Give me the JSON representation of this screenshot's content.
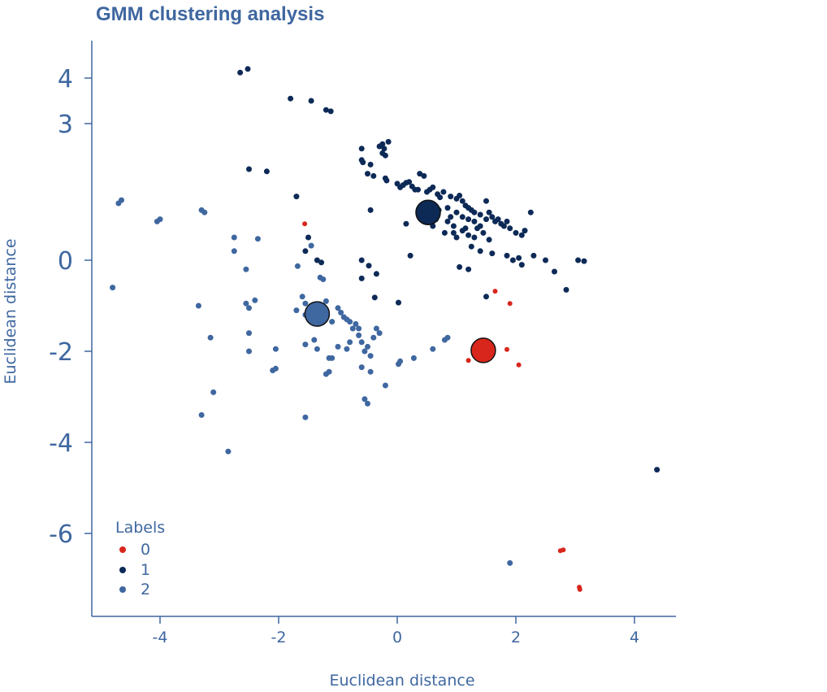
{
  "chart_data": {
    "type": "scatter",
    "title": "GMM clustering analysis",
    "xlabel": "Euclidean distance",
    "ylabel": "Euclidean distance",
    "xlim": [
      -5.2,
      4.8
    ],
    "ylim": [
      -7.7,
      4.5
    ],
    "xticks": [
      -4,
      -2,
      0,
      2,
      4
    ],
    "yticks": [
      4,
      3,
      0,
      -2,
      -4,
      -6
    ],
    "xtick_labels": [
      "-4",
      "-2",
      "0",
      "2",
      "4"
    ],
    "ytick_labels": [
      "4",
      "3",
      "0",
      "-2",
      "-4",
      "-6"
    ],
    "legend": {
      "title": "Labels",
      "position": "bottom-left",
      "entries": [
        "0",
        "1",
        "2"
      ]
    },
    "grid": false,
    "colors": {
      "0": "#d9261c",
      "1": "#0d2a57",
      "2": "#3f67a0",
      "text": "#3f67a0"
    },
    "series": [
      {
        "name": "0",
        "points": [
          [
            -1.56,
            0.8
          ],
          [
            1.65,
            -0.68
          ],
          [
            1.9,
            -0.95
          ],
          [
            1.85,
            -1.96
          ],
          [
            1.2,
            -2.2
          ],
          [
            2.05,
            -2.3
          ],
          [
            2.75,
            -6.38
          ],
          [
            2.8,
            -6.36
          ],
          [
            3.07,
            -7.18
          ],
          [
            3.08,
            -7.23
          ]
        ]
      },
      {
        "name": "1",
        "points": [
          [
            -2.65,
            4.12
          ],
          [
            -2.52,
            4.2
          ],
          [
            -1.8,
            3.55
          ],
          [
            -1.45,
            3.5
          ],
          [
            -1.2,
            3.3
          ],
          [
            -1.12,
            3.27
          ],
          [
            -2.5,
            2.0
          ],
          [
            -2.2,
            1.95
          ],
          [
            -1.7,
            1.4
          ],
          [
            -1.5,
            0.5
          ],
          [
            -1.55,
            0.2
          ],
          [
            -1.35,
            0.0
          ],
          [
            -1.28,
            -0.05
          ],
          [
            -0.6,
            0.0
          ],
          [
            -0.48,
            -0.12
          ],
          [
            -0.6,
            -0.4
          ],
          [
            -0.35,
            -0.3
          ],
          [
            -0.38,
            -0.82
          ],
          [
            0.02,
            -0.93
          ],
          [
            0.22,
            0.1
          ],
          [
            -0.45,
            1.1
          ],
          [
            0.15,
            0.8
          ],
          [
            -0.6,
            2.45
          ],
          [
            -0.6,
            2.2
          ],
          [
            -0.45,
            2.1
          ],
          [
            -0.3,
            2.5
          ],
          [
            -0.25,
            2.35
          ],
          [
            -0.22,
            2.45
          ],
          [
            -0.2,
            2.3
          ],
          [
            -0.15,
            2.6
          ],
          [
            -0.25,
            2.55
          ],
          [
            -0.58,
            2.15
          ],
          [
            -0.5,
            1.9
          ],
          [
            -0.4,
            1.85
          ],
          [
            -0.2,
            1.8
          ],
          [
            -0.18,
            1.75
          ],
          [
            0.0,
            1.68
          ],
          [
            0.05,
            1.6
          ],
          [
            0.1,
            1.65
          ],
          [
            0.15,
            1.7
          ],
          [
            0.2,
            1.72
          ],
          [
            0.25,
            1.62
          ],
          [
            0.3,
            1.55
          ],
          [
            0.38,
            1.9
          ],
          [
            0.45,
            1.85
          ],
          [
            0.5,
            1.5
          ],
          [
            0.55,
            1.55
          ],
          [
            0.6,
            1.6
          ],
          [
            0.68,
            1.45
          ],
          [
            0.72,
            1.38
          ],
          [
            0.78,
            1.5
          ],
          [
            0.35,
            1.55
          ],
          [
            0.9,
            1.4
          ],
          [
            1.0,
            1.35
          ],
          [
            1.05,
            1.42
          ],
          [
            1.1,
            1.3
          ],
          [
            1.15,
            1.2
          ],
          [
            1.2,
            1.15
          ],
          [
            1.25,
            1.1
          ],
          [
            1.3,
            1.05
          ],
          [
            1.4,
            1.0
          ],
          [
            1.5,
            1.3
          ],
          [
            1.55,
            1.05
          ],
          [
            1.6,
            0.95
          ],
          [
            1.65,
            0.85
          ],
          [
            1.7,
            0.9
          ],
          [
            1.75,
            0.8
          ],
          [
            1.8,
            0.75
          ],
          [
            1.85,
            0.85
          ],
          [
            1.9,
            0.7
          ],
          [
            2.0,
            0.6
          ],
          [
            2.1,
            0.55
          ],
          [
            2.15,
            0.65
          ],
          [
            2.25,
            1.05
          ],
          [
            1.0,
            0.5
          ],
          [
            0.8,
            0.6
          ],
          [
            0.95,
            0.75
          ],
          [
            1.1,
            0.65
          ],
          [
            1.2,
            0.55
          ],
          [
            1.3,
            0.5
          ],
          [
            1.45,
            0.6
          ],
          [
            1.55,
            0.45
          ],
          [
            1.25,
            0.3
          ],
          [
            1.4,
            0.2
          ],
          [
            1.6,
            0.15
          ],
          [
            1.85,
            0.1
          ],
          [
            1.95,
            0.0
          ],
          [
            2.05,
            0.05
          ],
          [
            2.1,
            -0.1
          ],
          [
            2.3,
            0.1
          ],
          [
            2.5,
            0.0
          ],
          [
            2.65,
            -0.25
          ],
          [
            2.85,
            -0.65
          ],
          [
            3.05,
            0.0
          ],
          [
            3.15,
            -0.02
          ],
          [
            1.05,
            -0.15
          ],
          [
            1.2,
            -0.2
          ],
          [
            1.5,
            -0.8
          ],
          [
            0.85,
            0.85
          ],
          [
            0.9,
            0.95
          ],
          [
            0.7,
            1.1
          ],
          [
            0.6,
            0.75
          ],
          [
            0.65,
            0.9
          ],
          [
            0.4,
            0.9
          ],
          [
            0.48,
            0.98
          ],
          [
            0.55,
            1.2
          ],
          [
            0.85,
            1.15
          ],
          [
            1.0,
            1.05
          ],
          [
            1.1,
            0.95
          ],
          [
            1.2,
            0.9
          ],
          [
            1.3,
            0.85
          ],
          [
            1.35,
            0.7
          ],
          [
            1.4,
            0.75
          ],
          [
            1.5,
            0.9
          ],
          [
            1.15,
            0.7
          ],
          [
            0.95,
            0.6
          ],
          [
            4.38,
            -4.6
          ]
        ]
      },
      {
        "name": "2",
        "points": [
          [
            -4.7,
            1.25
          ],
          [
            -4.65,
            1.32
          ],
          [
            -4.05,
            0.85
          ],
          [
            -4.0,
            0.9
          ],
          [
            -3.3,
            1.1
          ],
          [
            -3.25,
            1.05
          ],
          [
            -2.75,
            0.5
          ],
          [
            -2.35,
            0.47
          ],
          [
            -2.75,
            0.2
          ],
          [
            -2.55,
            -0.2
          ],
          [
            -4.8,
            -0.6
          ],
          [
            -3.35,
            -1.0
          ],
          [
            -2.55,
            -0.95
          ],
          [
            -2.5,
            -1.05
          ],
          [
            -2.4,
            -0.88
          ],
          [
            -2.5,
            -1.6
          ],
          [
            -2.5,
            -2.0
          ],
          [
            -3.15,
            -1.7
          ],
          [
            -2.05,
            -1.95
          ],
          [
            -2.05,
            -2.38
          ],
          [
            -2.1,
            -2.42
          ],
          [
            -3.1,
            -2.9
          ],
          [
            -3.3,
            -3.4
          ],
          [
            -2.85,
            -4.2
          ],
          [
            -1.55,
            -3.45
          ],
          [
            -1.45,
            0.32
          ],
          [
            -1.68,
            -0.13
          ],
          [
            -1.6,
            -0.8
          ],
          [
            -1.55,
            -0.95
          ],
          [
            -1.7,
            -1.1
          ],
          [
            -1.55,
            -1.2
          ],
          [
            -1.45,
            -1.0
          ],
          [
            -1.3,
            -1.15
          ],
          [
            -1.25,
            -1.35
          ],
          [
            -1.4,
            -1.75
          ],
          [
            -1.2,
            -1.25
          ],
          [
            -1.1,
            -1.35
          ],
          [
            -1.0,
            -1.05
          ],
          [
            -0.95,
            -1.15
          ],
          [
            -0.9,
            -1.25
          ],
          [
            -0.85,
            -1.3
          ],
          [
            -0.8,
            -1.35
          ],
          [
            -0.75,
            -1.5
          ],
          [
            -0.7,
            -1.4
          ],
          [
            -0.65,
            -1.5
          ],
          [
            -1.2,
            -0.9
          ],
          [
            -1.3,
            -0.38
          ],
          [
            -1.25,
            -0.42
          ],
          [
            -0.65,
            -1.65
          ],
          [
            -0.6,
            -1.8
          ],
          [
            -0.55,
            -2.0
          ],
          [
            -0.5,
            -1.9
          ],
          [
            -0.4,
            -1.7
          ],
          [
            -0.35,
            -1.5
          ],
          [
            -0.3,
            -1.6
          ],
          [
            -0.45,
            -2.1
          ],
          [
            -0.6,
            -2.35
          ],
          [
            -0.55,
            -3.05
          ],
          [
            -0.5,
            -3.15
          ],
          [
            -0.2,
            -2.75
          ],
          [
            -0.45,
            -2.45
          ],
          [
            -0.8,
            -1.8
          ],
          [
            -0.85,
            -1.95
          ],
          [
            -1.0,
            -1.9
          ],
          [
            -1.1,
            -2.15
          ],
          [
            -1.15,
            -2.15
          ],
          [
            -1.15,
            -2.45
          ],
          [
            -1.2,
            -2.5
          ],
          [
            -1.35,
            -1.95
          ],
          [
            -1.55,
            -1.85
          ],
          [
            0.02,
            -2.28
          ],
          [
            0.05,
            -2.22
          ],
          [
            0.28,
            -2.15
          ],
          [
            0.6,
            -1.95
          ],
          [
            0.8,
            -1.75
          ],
          [
            0.85,
            -1.7
          ],
          [
            1.9,
            -6.65
          ]
        ]
      }
    ],
    "centroids": [
      {
        "label": "0",
        "x": 1.45,
        "y": -1.98
      },
      {
        "label": "1",
        "x": 0.52,
        "y": 1.05
      },
      {
        "label": "2",
        "x": -1.35,
        "y": -1.18
      }
    ]
  }
}
